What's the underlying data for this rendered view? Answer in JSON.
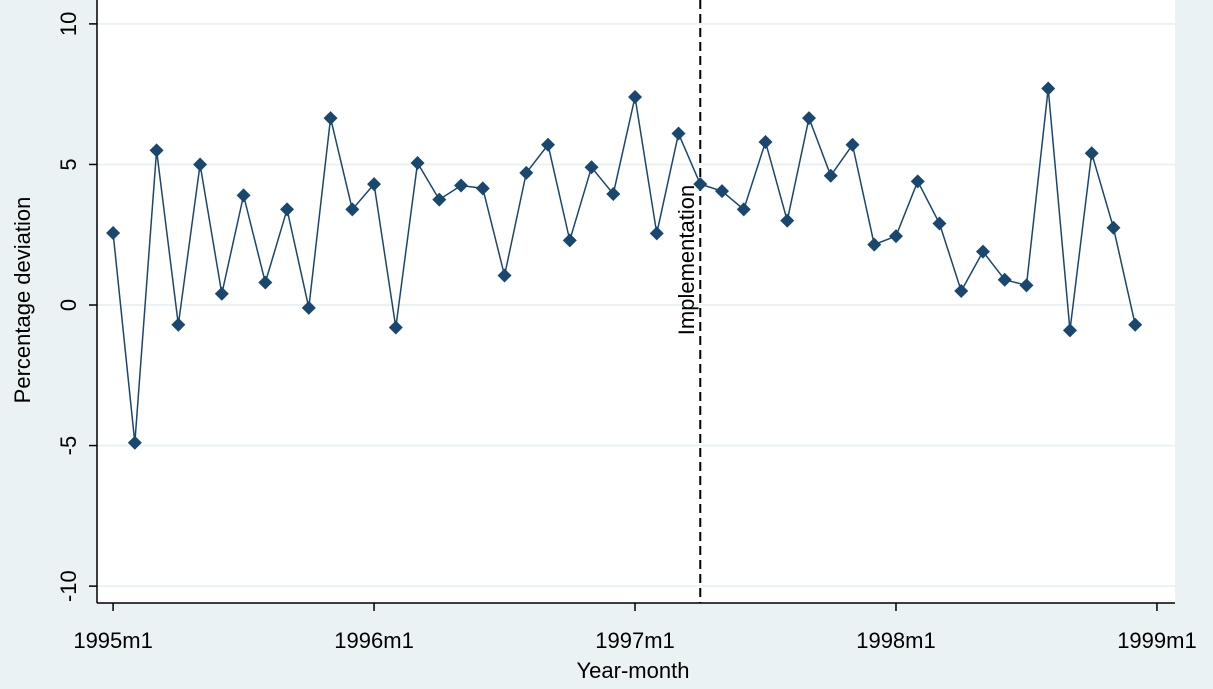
{
  "chart_data": {
    "type": "line",
    "y_label": "Percentage deviation",
    "x_label": "Year-month",
    "x": [
      420,
      421,
      422,
      423,
      424,
      425,
      426,
      427,
      428,
      429,
      430,
      431,
      432,
      433,
      434,
      435,
      436,
      437,
      438,
      439,
      440,
      441,
      442,
      443,
      444,
      445,
      446,
      447,
      448,
      449,
      450,
      451,
      452,
      453,
      454,
      455,
      456,
      457,
      458,
      459,
      460,
      461,
      462,
      463,
      464,
      465,
      466,
      467
    ],
    "values": [
      2.56,
      -4.9,
      5.5,
      -0.7,
      5.0,
      0.4,
      3.9,
      0.8,
      3.4,
      -0.1,
      6.65,
      3.4,
      4.3,
      -0.8,
      5.05,
      3.75,
      4.25,
      4.15,
      1.05,
      4.7,
      5.7,
      2.3,
      4.9,
      3.95,
      7.4,
      2.55,
      6.1,
      4.3,
      4.05,
      3.4,
      5.8,
      3.0,
      6.65,
      4.6,
      5.7,
      2.15,
      2.45,
      4.4,
      2.9,
      0.5,
      1.9,
      0.9,
      0.7,
      7.7,
      -0.9,
      5.4,
      2.75,
      -0.7
    ],
    "color": "#1a476f",
    "xlim": [
      419.26,
      468.83
    ],
    "xticks": [
      {
        "value": 420,
        "label": "1995m1"
      },
      {
        "value": 432,
        "label": "1996m1"
      },
      {
        "value": 444,
        "label": "1997m1"
      },
      {
        "value": 456,
        "label": "1998m1"
      },
      {
        "value": 468,
        "label": "1999m1"
      }
    ],
    "ylim": [
      -10.6,
      10.85
    ],
    "yticks": [
      -10,
      -5,
      0,
      5,
      10
    ],
    "grid": true,
    "annotation": {
      "x": 447,
      "label": "Implementation"
    }
  }
}
